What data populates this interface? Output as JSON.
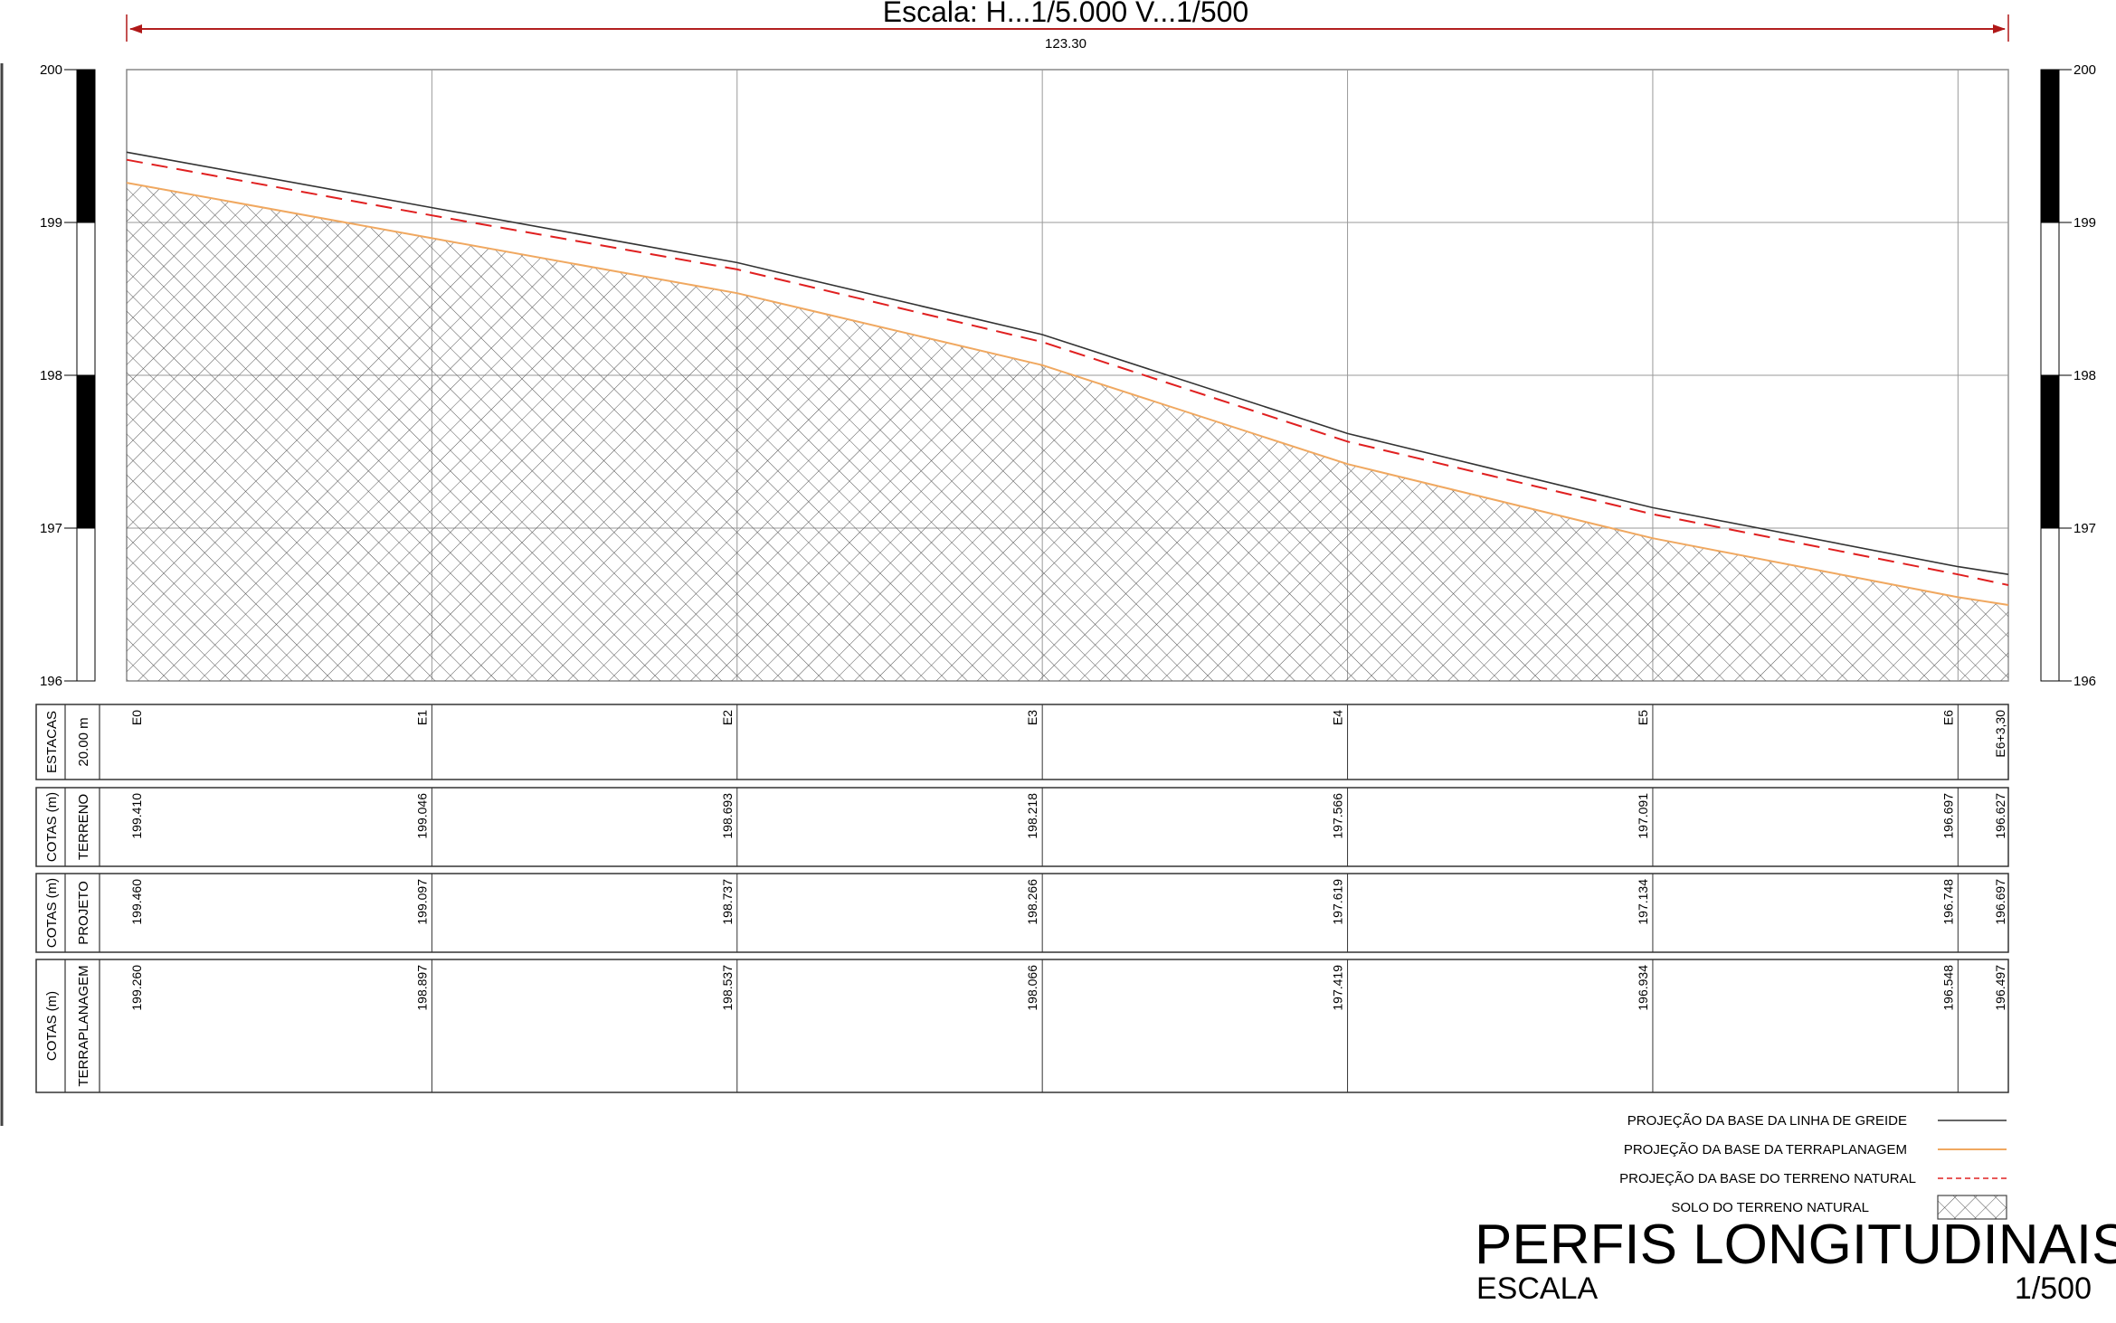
{
  "header": {
    "title": "Escala: H...1/5.000  V...1/500",
    "length": "123.30"
  },
  "elevation_axis": {
    "min": 196,
    "max": 200,
    "ticks": [
      "200",
      "199",
      "198",
      "197",
      "196"
    ]
  },
  "colors": {
    "greide": "#333333",
    "terraplanagem": "#f0a860",
    "terreno": "#e02020",
    "arrow": "#b01818",
    "grid": "#9a9a9a"
  },
  "stations": [
    {
      "label": "E0",
      "distance": 0
    },
    {
      "label": "E1",
      "distance": 20
    },
    {
      "label": "E2",
      "distance": 40
    },
    {
      "label": "E3",
      "distance": 60
    },
    {
      "label": "E4",
      "distance": 80
    },
    {
      "label": "E5",
      "distance": 100
    },
    {
      "label": "E6",
      "distance": 120
    },
    {
      "label": "E6+3,30",
      "distance": 123.3
    }
  ],
  "profile": {
    "greide_top": [
      199.46,
      199.097,
      198.737,
      198.266,
      197.619,
      197.134,
      196.748,
      196.697
    ],
    "terreno": [
      199.41,
      199.046,
      198.693,
      198.218,
      197.566,
      197.091,
      196.697,
      196.627
    ],
    "terraplanagem": [
      199.26,
      198.897,
      198.537,
      198.066,
      197.419,
      196.934,
      196.548,
      196.497
    ]
  },
  "table": {
    "rows": [
      {
        "id": "estacas",
        "label1": "ESTACAS",
        "label2": "20.00 m",
        "values": [
          "E0",
          "E1",
          "E2",
          "E3",
          "E4",
          "E5",
          "E6",
          "E6+3,30"
        ]
      },
      {
        "id": "terreno",
        "label1": "COTAS (m)",
        "label2": "TERRENO",
        "values": [
          "199.410",
          "199.046",
          "198.693",
          "198.218",
          "197.566",
          "197.091",
          "196.697",
          "196.627"
        ]
      },
      {
        "id": "projeto",
        "label1": "COTAS (m)",
        "label2": "PROJETO",
        "values": [
          "199.460",
          "199.097",
          "198.737",
          "198.266",
          "197.619",
          "197.134",
          "196.748",
          "196.697"
        ]
      },
      {
        "id": "terraplanagem",
        "label1": "COTAS (m)",
        "label2": "TERRAPLANAGEM",
        "values": [
          "199.260",
          "198.897",
          "198.537",
          "198.066",
          "197.419",
          "196.934",
          "196.548",
          "196.497"
        ]
      }
    ]
  },
  "legend": [
    {
      "label": "PROJEÇÃO DA BASE DA LINHA DE GREIDE",
      "style": "solid-dark"
    },
    {
      "label": "PROJEÇÃO DA BASE DA TERRAPLANAGEM",
      "style": "solid-orange"
    },
    {
      "label": "PROJEÇÃO DA BASE DO TERRENO NATURAL",
      "style": "dashed-red"
    },
    {
      "label": "SOLO DO TERRENO NATURAL",
      "style": "hatch"
    }
  ],
  "title_block": {
    "title": "PERFIS LONGITUDINAIS",
    "scale_label": "ESCALA",
    "scale_value": "1/500"
  }
}
